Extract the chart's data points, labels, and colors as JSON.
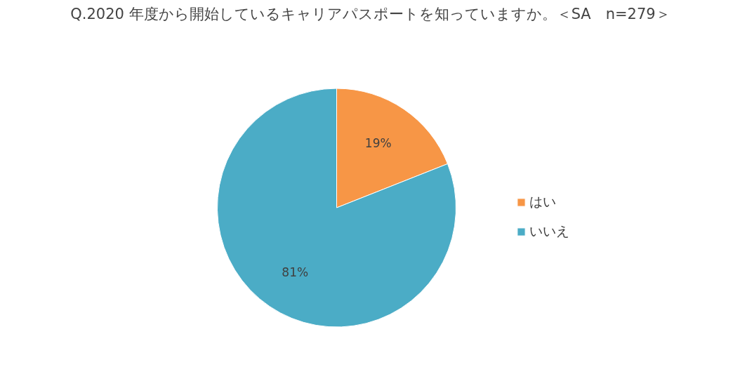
{
  "chart_data": {
    "type": "pie",
    "title": "Q.2020 年度から開始しているキャリアパスポートを知っていますか。＜SA　n=279＞",
    "categories": [
      "はい",
      "いいえ"
    ],
    "values": [
      19,
      81
    ],
    "colors": [
      "#f79646",
      "#4bacc6"
    ],
    "value_labels": [
      "19%",
      "81%"
    ],
    "legend": "right"
  }
}
